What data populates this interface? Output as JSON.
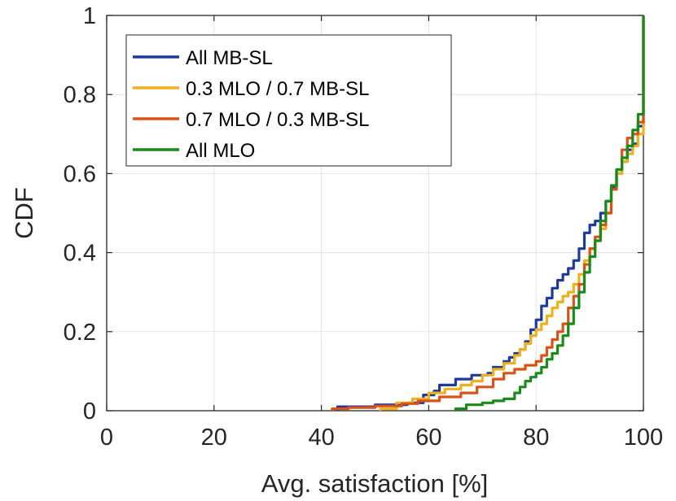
{
  "chart_data": {
    "type": "line",
    "title": "",
    "xlabel": "Avg. satisfaction [%]",
    "ylabel": "CDF",
    "xlim": [
      0,
      100
    ],
    "ylim": [
      0,
      1
    ],
    "xticks": [
      0,
      20,
      40,
      60,
      80,
      100
    ],
    "yticks": [
      0,
      0.2,
      0.4,
      0.6,
      0.8,
      1
    ],
    "xtick_labels": [
      "0",
      "20",
      "40",
      "60",
      "80",
      "100"
    ],
    "ytick_labels": [
      "0",
      "0.2",
      "0.4",
      "0.6",
      "0.8",
      "1"
    ],
    "grid": true,
    "legend_position": "top-left",
    "series": [
      {
        "name": "All MB-SL",
        "color": "#1f3b99",
        "x": [
          43,
          50,
          56,
          59,
          61,
          62,
          65,
          68,
          71,
          72,
          74,
          75,
          76,
          77,
          78,
          79,
          80,
          81,
          82,
          83,
          84,
          85,
          86,
          87,
          88,
          89,
          90,
          91,
          92,
          93,
          94,
          95,
          96,
          97,
          98,
          99,
          100,
          100
        ],
        "y": [
          0.01,
          0.015,
          0.02,
          0.04,
          0.05,
          0.065,
          0.08,
          0.09,
          0.095,
          0.11,
          0.125,
          0.135,
          0.145,
          0.155,
          0.175,
          0.205,
          0.23,
          0.265,
          0.285,
          0.31,
          0.33,
          0.345,
          0.36,
          0.38,
          0.41,
          0.45,
          0.47,
          0.48,
          0.5,
          0.53,
          0.565,
          0.6,
          0.63,
          0.66,
          0.675,
          0.72,
          0.8,
          1.0
        ]
      },
      {
        "name": "0.3 MLO / 0.7 MB-SL",
        "color": "#edb120",
        "x": [
          51,
          54,
          57,
          60,
          63,
          66,
          68,
          70,
          72,
          74,
          76,
          77,
          78,
          79,
          80,
          81,
          82,
          83,
          84,
          85,
          86,
          87,
          88,
          89,
          90,
          91,
          92,
          93,
          94,
          95,
          96,
          97,
          98,
          99,
          100,
          100
        ],
        "y": [
          0.005,
          0.02,
          0.03,
          0.045,
          0.055,
          0.065,
          0.075,
          0.09,
          0.105,
          0.12,
          0.14,
          0.155,
          0.17,
          0.19,
          0.205,
          0.22,
          0.24,
          0.26,
          0.275,
          0.29,
          0.3,
          0.32,
          0.345,
          0.38,
          0.41,
          0.43,
          0.46,
          0.5,
          0.56,
          0.6,
          0.63,
          0.65,
          0.67,
          0.7,
          0.8,
          1.0
        ]
      },
      {
        "name": "0.7 MLO / 0.3 MB-SL",
        "color": "#d95319",
        "x": [
          42,
          45,
          50,
          55,
          58,
          62,
          66,
          69,
          72,
          74,
          76,
          78,
          80,
          81,
          82,
          83,
          84,
          85,
          86,
          87,
          88,
          89,
          90,
          91,
          92,
          93,
          94,
          95,
          96,
          97,
          98,
          99,
          100,
          100
        ],
        "y": [
          0.005,
          0.008,
          0.012,
          0.018,
          0.025,
          0.035,
          0.045,
          0.06,
          0.08,
          0.095,
          0.105,
          0.115,
          0.125,
          0.14,
          0.16,
          0.18,
          0.2,
          0.22,
          0.26,
          0.29,
          0.32,
          0.37,
          0.41,
          0.44,
          0.47,
          0.5,
          0.56,
          0.61,
          0.66,
          0.69,
          0.7,
          0.73,
          0.8,
          1.0
        ]
      },
      {
        "name": "All MLO",
        "color": "#1a8a1a",
        "x": [
          65,
          67,
          70,
          72,
          74,
          76,
          77,
          78,
          79,
          80,
          81,
          82,
          83,
          84,
          85,
          86,
          87,
          88,
          89,
          90,
          91,
          92,
          93,
          94,
          95,
          96,
          97,
          98,
          99,
          100,
          100
        ],
        "y": [
          0.005,
          0.015,
          0.02,
          0.025,
          0.03,
          0.045,
          0.06,
          0.075,
          0.085,
          0.095,
          0.11,
          0.13,
          0.145,
          0.165,
          0.19,
          0.22,
          0.26,
          0.3,
          0.35,
          0.39,
          0.43,
          0.48,
          0.53,
          0.57,
          0.61,
          0.64,
          0.67,
          0.71,
          0.75,
          0.82,
          1.0
        ]
      }
    ]
  }
}
